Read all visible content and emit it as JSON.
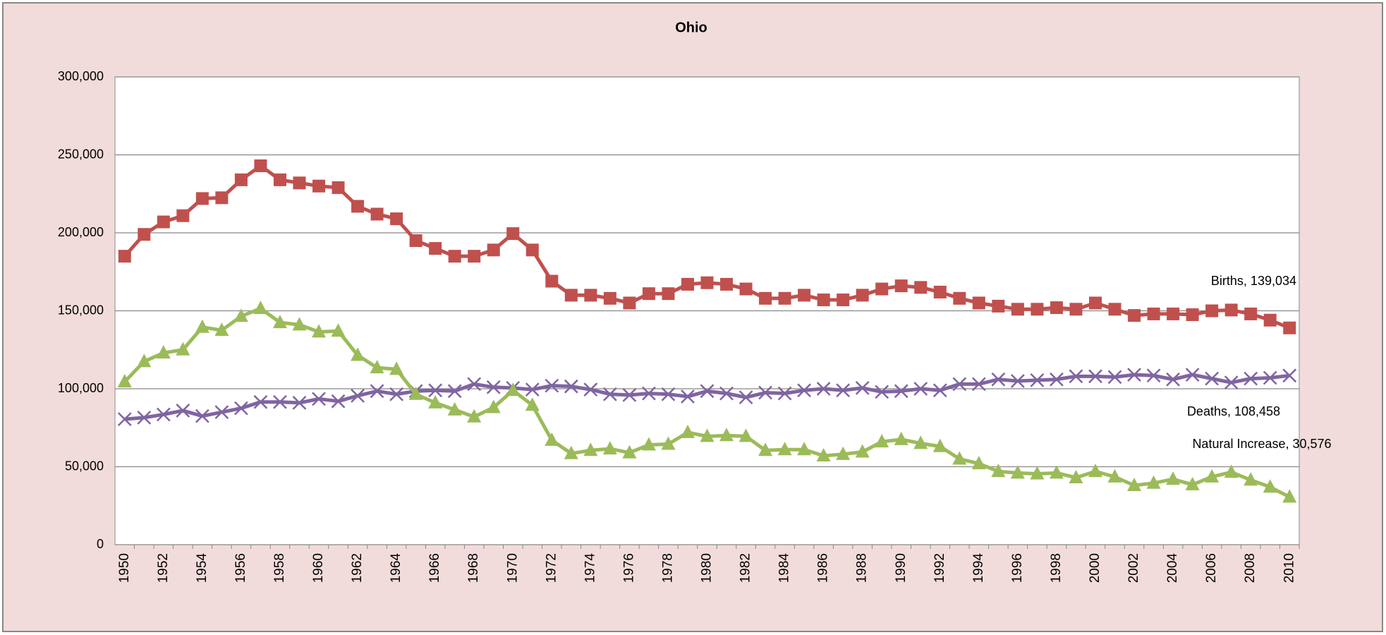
{
  "chart_data": {
    "type": "line",
    "title": "Ohio",
    "categories": [
      "1950",
      null,
      "1952",
      null,
      "1954",
      null,
      "1956",
      null,
      "1958",
      null,
      "1960",
      null,
      "1962",
      null,
      "1964",
      null,
      "1966",
      null,
      "1968",
      null,
      "1970",
      null,
      "1972",
      null,
      "1974",
      null,
      "1976",
      null,
      "1978",
      null,
      "1980",
      null,
      "1982",
      null,
      "1984",
      null,
      "1986",
      null,
      "1988",
      null,
      "1990",
      null,
      "1992",
      null,
      "1994",
      null,
      "1996",
      null,
      "1998",
      null,
      "2000",
      null,
      "2002",
      null,
      "2004",
      null,
      "2006",
      null,
      "2008",
      null,
      "2010"
    ],
    "series": [
      {
        "name": "Births",
        "color": "#c0504d",
        "marker": "square",
        "values": [
          185000,
          199000,
          207000,
          211000,
          222000,
          222500,
          234000,
          243000,
          234000,
          232000,
          230000,
          229000,
          217000,
          212000,
          209000,
          195000,
          190000,
          185000,
          185000,
          189000,
          199500,
          189000,
          169000,
          160000,
          160000,
          158000,
          155000,
          161000,
          161000,
          167000,
          168000,
          167000,
          164000,
          158000,
          158000,
          160000,
          157000,
          157000,
          160000,
          164000,
          166000,
          165000,
          162000,
          158000,
          155000,
          153000,
          151000,
          151000,
          152000,
          151000,
          155000,
          151000,
          147000,
          148000,
          148000,
          147500,
          150000,
          150500,
          148000,
          144000,
          139034
        ],
        "value_labels": [
          null,
          null,
          null,
          null,
          null,
          null,
          null,
          null,
          null,
          null,
          null,
          null,
          null,
          null,
          null,
          null,
          null,
          null,
          null,
          null,
          null,
          null,
          null,
          null,
          null,
          null,
          null,
          null,
          null,
          null,
          null,
          null,
          null,
          null,
          null,
          null,
          null,
          null,
          null,
          null,
          null,
          null,
          null,
          null,
          null,
          null,
          null,
          null,
          null,
          null,
          null,
          null,
          null,
          null,
          null,
          null,
          null,
          null,
          null,
          null,
          "Births,  139,034"
        ]
      },
      {
        "name": "Deaths",
        "color": "#8064a2",
        "marker": "x",
        "values": [
          80500,
          81500,
          83500,
          86000,
          82500,
          85000,
          87500,
          91500,
          91500,
          91000,
          93500,
          92000,
          95500,
          98500,
          96500,
          98500,
          99000,
          98500,
          103000,
          101000,
          100500,
          99500,
          102000,
          101500,
          99500,
          96500,
          96000,
          97000,
          96500,
          95000,
          98500,
          97000,
          94500,
          97500,
          97000,
          99000,
          100000,
          99000,
          100500,
          98000,
          98500,
          100000,
          99000,
          103000,
          103000,
          106000,
          105000,
          105500,
          106000,
          108000,
          108000,
          107500,
          109000,
          108500,
          106000,
          109000,
          106500,
          104000,
          106500,
          107000,
          108458
        ],
        "value_labels": [
          null,
          null,
          null,
          null,
          null,
          null,
          null,
          null,
          null,
          null,
          null,
          null,
          null,
          null,
          null,
          null,
          null,
          null,
          null,
          null,
          null,
          null,
          null,
          null,
          null,
          null,
          null,
          null,
          null,
          null,
          null,
          null,
          null,
          null,
          null,
          null,
          null,
          null,
          null,
          null,
          null,
          null,
          null,
          null,
          null,
          null,
          null,
          null,
          null,
          null,
          null,
          null,
          null,
          null,
          null,
          null,
          null,
          null,
          null,
          null,
          "Deaths,  108,458"
        ]
      },
      {
        "name": "Natural Increase",
        "color": "#9bbb59",
        "marker": "triangle",
        "values": [
          104500,
          117500,
          123000,
          125000,
          139500,
          137500,
          146500,
          151500,
          142500,
          141000,
          136500,
          137000,
          121500,
          113500,
          112500,
          96500,
          91000,
          86500,
          82000,
          88000,
          99000,
          89500,
          67000,
          58500,
          60500,
          61500,
          59000,
          64000,
          64500,
          72000,
          69500,
          70000,
          69500,
          60500,
          61000,
          61000,
          57000,
          58000,
          59500,
          66000,
          67500,
          65000,
          63000,
          55000,
          52000,
          47000,
          46000,
          45500,
          46000,
          43000,
          47000,
          43500,
          38000,
          39500,
          42000,
          38500,
          43500,
          46500,
          41500,
          37000,
          30576
        ],
        "value_labels": [
          null,
          null,
          null,
          null,
          null,
          null,
          null,
          null,
          null,
          null,
          null,
          null,
          null,
          null,
          null,
          null,
          null,
          null,
          null,
          null,
          null,
          null,
          null,
          null,
          null,
          null,
          null,
          null,
          null,
          null,
          null,
          null,
          null,
          null,
          null,
          null,
          null,
          null,
          null,
          null,
          null,
          null,
          null,
          null,
          null,
          null,
          null,
          null,
          null,
          null,
          null,
          null,
          null,
          null,
          null,
          null,
          null,
          null,
          null,
          null,
          "Natural Increase,  30,576"
        ]
      }
    ],
    "ylim": [
      0,
      300000
    ],
    "yticks": [
      0,
      {
        "value": 50000,
        "label": "50,000"
      },
      {
        "value": 100000,
        "label": "100,000"
      },
      {
        "value": 150000,
        "label": "150,000"
      },
      {
        "value": 200000,
        "label": "200,000"
      },
      {
        "value": 250000,
        "label": "250,000"
      },
      {
        "value": 300000,
        "label": "300,000"
      }
    ],
    "grid": true
  }
}
